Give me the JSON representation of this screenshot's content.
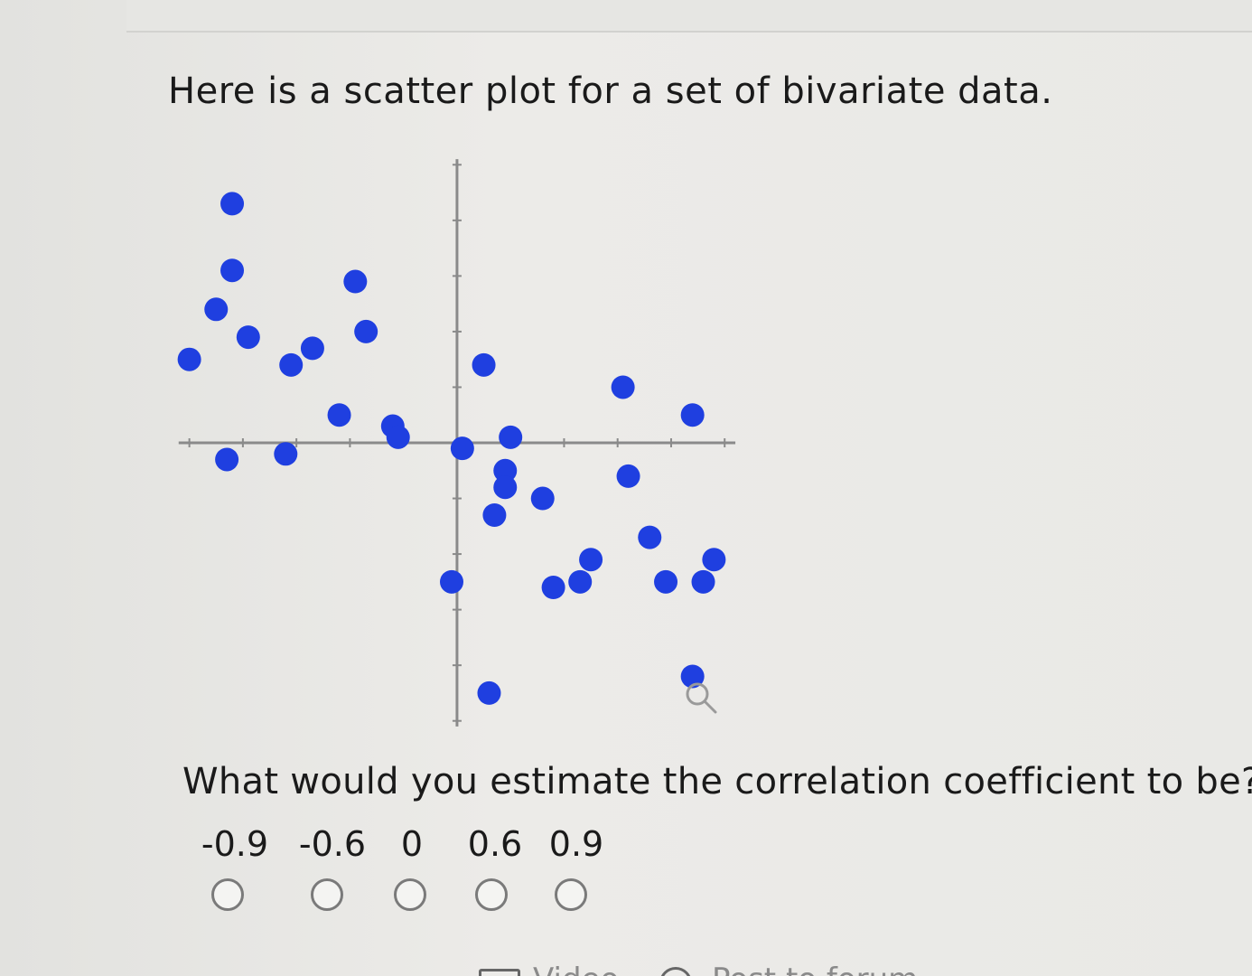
{
  "prompt": "Here is a scatter plot for a set of bivariate data.",
  "question": "What would you estimate the correlation coefficient to be?",
  "choices": [
    {
      "label": "-0.9"
    },
    {
      "label": "-0.6"
    },
    {
      "label": "0"
    },
    {
      "label": "0.6"
    },
    {
      "label": "0.9"
    }
  ],
  "links": {
    "video": "Video",
    "forum": "Post to forum"
  },
  "colors": {
    "points": "#1f3fe0",
    "axis": "#8a8a8a"
  },
  "icons": {
    "zoom": "magnifier-icon",
    "video": "video-icon",
    "forum": "speech-bubble-icon"
  },
  "chart_data": {
    "type": "scatter",
    "title": "",
    "xlabel": "",
    "ylabel": "",
    "xlim": [
      -5.5,
      5.3
    ],
    "ylim": [
      -5.2,
      5.2
    ],
    "grid": false,
    "legend": "none",
    "points": [
      {
        "x": -4.2,
        "y": 4.3
      },
      {
        "x": -4.2,
        "y": 3.1
      },
      {
        "x": -4.5,
        "y": 2.4
      },
      {
        "x": -3.9,
        "y": 1.9
      },
      {
        "x": -5.0,
        "y": 1.5
      },
      {
        "x": -3.1,
        "y": 1.4
      },
      {
        "x": -2.7,
        "y": 1.7
      },
      {
        "x": -1.9,
        "y": 2.9
      },
      {
        "x": -1.7,
        "y": 2.0
      },
      {
        "x": -2.2,
        "y": 0.5
      },
      {
        "x": -1.2,
        "y": 0.3
      },
      {
        "x": -1.1,
        "y": 0.1
      },
      {
        "x": -4.3,
        "y": -0.3
      },
      {
        "x": -3.2,
        "y": -0.2
      },
      {
        "x": 0.5,
        "y": 1.4
      },
      {
        "x": 0.1,
        "y": -0.1
      },
      {
        "x": 1.0,
        "y": 0.1
      },
      {
        "x": 0.9,
        "y": -0.5
      },
      {
        "x": 0.9,
        "y": -0.8
      },
      {
        "x": 1.6,
        "y": -1.0
      },
      {
        "x": 0.7,
        "y": -1.3
      },
      {
        "x": -0.1,
        "y": -2.5
      },
      {
        "x": 1.8,
        "y": -2.6
      },
      {
        "x": 2.3,
        "y": -2.5
      },
      {
        "x": 2.5,
        "y": -2.1
      },
      {
        "x": 3.1,
        "y": 1.0
      },
      {
        "x": 3.2,
        "y": -0.6
      },
      {
        "x": 3.6,
        "y": -1.7
      },
      {
        "x": 4.4,
        "y": 0.5
      },
      {
        "x": 3.9,
        "y": -2.5
      },
      {
        "x": 4.6,
        "y": -2.5
      },
      {
        "x": 4.8,
        "y": -2.1
      },
      {
        "x": 4.4,
        "y": -4.2
      },
      {
        "x": 0.6,
        "y": -4.5
      }
    ]
  }
}
